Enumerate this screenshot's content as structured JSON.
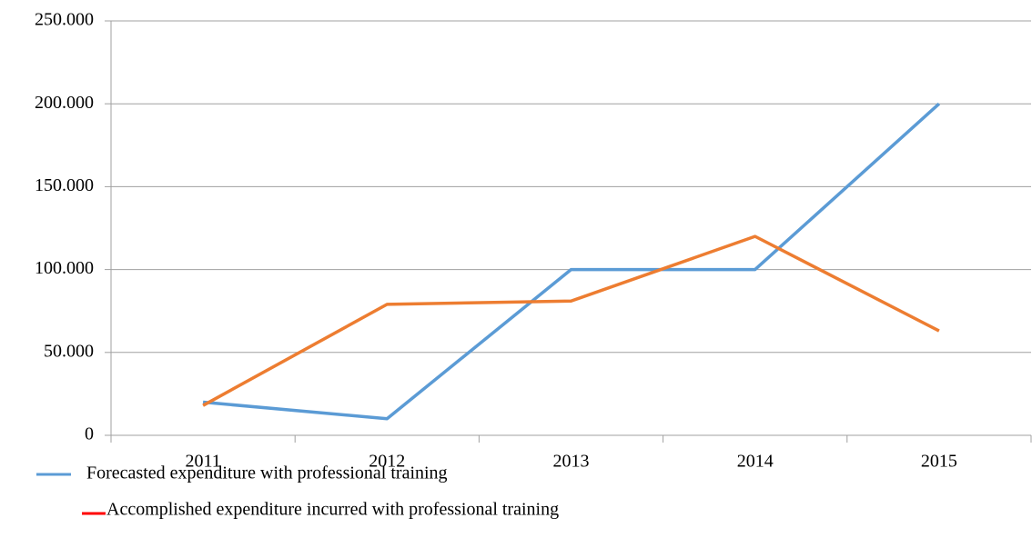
{
  "chart_data": {
    "type": "line",
    "categories": [
      "2011",
      "2012",
      "2013",
      "2014",
      "2015"
    ],
    "series": [
      {
        "name": "Forecasted expenditure with professional training",
        "color": "#5b9bd5",
        "legend_color": "#5b9bd5",
        "values": [
          20000,
          10000,
          100000,
          100000,
          200000
        ]
      },
      {
        "name": "Accomplished expenditure incurred with professional training",
        "color": "#ed7d31",
        "legend_color": "#ff0000",
        "values": [
          18000,
          79000,
          81000,
          120000,
          63000
        ]
      }
    ],
    "ylim": [
      0,
      250000
    ],
    "yticks": [
      0,
      {
        "value": 50000,
        "label": "50.000"
      },
      {
        "value": 100000,
        "label": "100.000"
      },
      {
        "value": 150000,
        "label": "150.000"
      },
      {
        "value": 200000,
        "label": "200.000"
      },
      {
        "value": 250000,
        "label": "250.000"
      }
    ],
    "grid": true
  }
}
